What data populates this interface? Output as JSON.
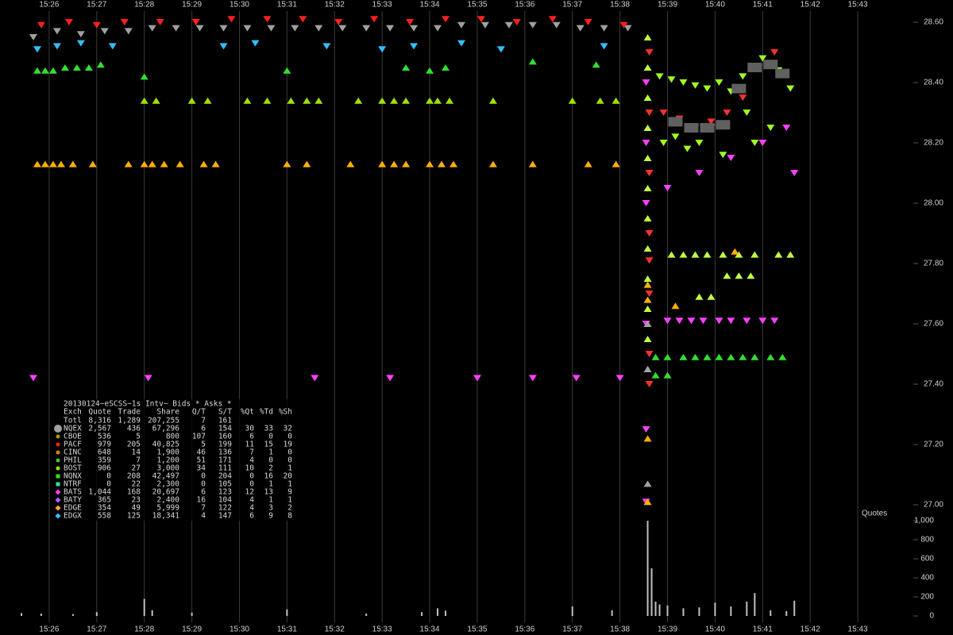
{
  "chart_data": {
    "type": "scatter",
    "xlim": [
      "15:25:20",
      "15:43:40"
    ],
    "xticks": [
      "15:26",
      "15:27",
      "15:28",
      "15:29",
      "15:30",
      "15:31",
      "15:32",
      "15:33",
      "15:34",
      "15:35",
      "15:36",
      "15:37",
      "15:38",
      "15:39",
      "15:40",
      "15:41",
      "15:42",
      "15:43"
    ],
    "ylim": [
      27.0,
      28.6
    ],
    "yticks": [
      {
        "value": 28.6,
        "label": "28.60"
      },
      {
        "value": 28.4,
        "label": "28.40"
      },
      {
        "value": 28.2,
        "label": "28.20"
      },
      {
        "value": 28.0,
        "label": "28.00"
      },
      {
        "value": 27.8,
        "label": "27.80"
      },
      {
        "value": 27.6,
        "label": "27.60"
      },
      {
        "value": 27.4,
        "label": "27.40"
      },
      {
        "value": 27.2,
        "label": "27.20"
      },
      {
        "value": 27.0,
        "label": "27.00"
      }
    ],
    "y2lim": [
      0,
      1000
    ],
    "y2ticks": [
      0,
      200,
      400,
      600,
      800,
      {
        "value": 1000,
        "label": "1,000"
      }
    ],
    "y2_label": "Quotes",
    "grid": true,
    "series": [
      {
        "color": "#ffb000",
        "marker": "triangle-up",
        "x": [
          "15:25:45",
          "15:25:55",
          "15:26:05",
          "15:26:15",
          "15:26:30",
          "15:26:55",
          "15:27:40",
          "15:28:00",
          "15:28:10",
          "15:28:25",
          "15:28:45",
          "15:29:15",
          "15:29:30",
          "15:31:00",
          "15:31:25",
          "15:32:20",
          "15:33:00",
          "15:33:15",
          "15:33:30",
          "15:34:00",
          "15:34:15",
          "15:34:30",
          "15:35:20",
          "15:36:10",
          "15:37:20",
          "15:37:55"
        ],
        "values": [
          28.13,
          28.13,
          28.13,
          28.13,
          28.13,
          28.13,
          28.13,
          28.13,
          28.13,
          28.13,
          28.13,
          28.13,
          28.13,
          28.13,
          28.13,
          28.13,
          28.13,
          28.13,
          28.13,
          28.13,
          28.13,
          28.13,
          28.13,
          28.13,
          28.13,
          28.13
        ]
      },
      {
        "color": "#a0e000",
        "marker": "triangle-up",
        "x": [
          "15:28:00",
          "15:28:15",
          "15:29:00",
          "15:29:20",
          "15:30:10",
          "15:30:35",
          "15:31:05",
          "15:31:25",
          "15:31:40",
          "15:32:30",
          "15:33:00",
          "15:33:15",
          "15:33:30",
          "15:34:00",
          "15:34:10",
          "15:34:25",
          "15:35:20",
          "15:37:00",
          "15:37:35",
          "15:37:55"
        ],
        "values": [
          28.34,
          28.34,
          28.34,
          28.34,
          28.34,
          28.34,
          28.34,
          28.34,
          28.34,
          28.34,
          28.34,
          28.34,
          28.34,
          28.34,
          28.34,
          28.34,
          28.34,
          28.34,
          28.34,
          28.34
        ]
      },
      {
        "color": "#ff40ff",
        "marker": "triangle-down",
        "x": [
          "15:25:40",
          "15:28:05",
          "15:31:35",
          "15:33:10",
          "15:35:00",
          "15:36:10",
          "15:37:05",
          "15:38:00"
        ],
        "values": [
          27.42,
          27.42,
          27.42,
          27.42,
          27.42,
          27.42,
          27.42,
          27.42
        ]
      },
      {
        "color": "#a0a0a0",
        "marker": "triangle-down",
        "x": [
          "15:25:40",
          "15:26:10",
          "15:26:40",
          "15:27:10",
          "15:27:40",
          "15:28:10",
          "15:28:40",
          "15:29:10",
          "15:29:40",
          "15:30:10",
          "15:30:40",
          "15:31:10",
          "15:31:40",
          "15:32:10",
          "15:32:40",
          "15:33:10",
          "15:33:40",
          "15:34:10",
          "15:34:40",
          "15:35:10",
          "15:35:40",
          "15:36:10",
          "15:36:40",
          "15:37:10",
          "15:37:40",
          "15:38:10"
        ],
        "values": [
          28.55,
          28.57,
          28.56,
          28.57,
          28.57,
          28.58,
          28.58,
          28.58,
          28.58,
          28.58,
          28.58,
          28.58,
          28.58,
          28.58,
          28.58,
          28.58,
          28.58,
          28.58,
          28.59,
          28.59,
          28.59,
          28.59,
          28.59,
          28.58,
          28.58,
          28.58
        ]
      },
      {
        "color": "#ff2020",
        "marker": "triangle-down",
        "x": [
          "15:25:50",
          "15:26:25",
          "15:27:00",
          "15:27:35",
          "15:28:20",
          "15:29:05",
          "15:29:50",
          "15:30:35",
          "15:31:20",
          "15:32:05",
          "15:32:50",
          "15:33:35",
          "15:34:20",
          "15:35:05",
          "15:35:50",
          "15:36:35",
          "15:37:20",
          "15:38:05"
        ],
        "values": [
          28.59,
          28.6,
          28.59,
          28.6,
          28.6,
          28.6,
          28.61,
          28.61,
          28.61,
          28.6,
          28.61,
          28.6,
          28.61,
          28.61,
          28.6,
          28.61,
          28.6,
          28.59
        ]
      },
      {
        "color": "#30e030",
        "marker": "triangle-up",
        "x": [
          "15:25:45",
          "15:25:55",
          "15:26:05",
          "15:26:20",
          "15:26:35",
          "15:26:50",
          "15:27:05",
          "15:28:00",
          "15:31:00",
          "15:33:30",
          "15:34:00",
          "15:34:20",
          "15:36:10",
          "15:37:30"
        ],
        "values": [
          28.44,
          28.44,
          28.44,
          28.45,
          28.45,
          28.45,
          28.46,
          28.42,
          28.44,
          28.45,
          28.44,
          28.45,
          28.47,
          28.46
        ]
      },
      {
        "color": "#30c0ff",
        "marker": "triangle-down",
        "x": [
          "15:25:45",
          "15:26:10",
          "15:26:40",
          "15:27:20",
          "15:29:40",
          "15:30:20",
          "15:31:50",
          "15:33:00",
          "15:33:40",
          "15:34:40",
          "15:35:30",
          "15:37:40"
        ],
        "values": [
          28.51,
          28.52,
          28.53,
          28.52,
          28.52,
          28.53,
          28.52,
          28.51,
          28.52,
          28.53,
          28.51,
          28.52
        ]
      },
      {
        "color": "#c0ff40",
        "marker": "triangle-up",
        "x": [
          "15:38:35",
          "15:38:35",
          "15:38:35",
          "15:38:35",
          "15:38:35",
          "15:38:35",
          "15:38:35",
          "15:38:35",
          "15:38:35",
          "15:38:35",
          "15:38:35",
          "15:38:35"
        ],
        "values": [
          28.55,
          28.45,
          28.35,
          28.25,
          28.15,
          28.05,
          27.95,
          27.85,
          27.75,
          27.65,
          27.55,
          27.45
        ]
      },
      {
        "color": "#ff3030",
        "marker": "triangle-down",
        "x": [
          "15:38:37",
          "15:38:37",
          "15:38:37",
          "15:38:37",
          "15:38:37",
          "15:38:37",
          "15:38:37",
          "15:38:37"
        ],
        "values": [
          28.5,
          28.3,
          28.1,
          27.9,
          27.81,
          27.7,
          27.5,
          27.4
        ]
      },
      {
        "color": "#ff40ff",
        "marker": "triangle-down",
        "x": [
          "15:38:33",
          "15:38:33",
          "15:38:33",
          "15:38:33",
          "15:38:33",
          "15:38:33"
        ],
        "values": [
          28.4,
          28.2,
          28.0,
          27.6,
          27.25,
          27.01
        ]
      },
      {
        "color": "#a0a0a0",
        "marker": "triangle-up",
        "x": [
          "15:38:35",
          "15:38:35",
          "15:38:35"
        ],
        "values": [
          27.6,
          27.45,
          27.07
        ]
      },
      {
        "color": "#ffb000",
        "marker": "triangle-up",
        "x": [
          "15:38:35",
          "15:38:35",
          "15:38:35",
          "15:38:35"
        ],
        "values": [
          27.73,
          27.68,
          27.22,
          27.01
        ]
      },
      {
        "color": "#30e030",
        "marker": "triangle-up",
        "x": [
          "15:38:45",
          "15:39:00",
          "15:39:20",
          "15:39:35",
          "15:39:50",
          "15:40:05",
          "15:40:20",
          "15:40:35",
          "15:40:50",
          "15:41:10",
          "15:41:25",
          "15:38:45",
          "15:39:00"
        ],
        "values": [
          27.49,
          27.49,
          27.49,
          27.49,
          27.49,
          27.49,
          27.49,
          27.49,
          27.49,
          27.49,
          27.49,
          27.43,
          27.43
        ]
      },
      {
        "color": "#ff40ff",
        "marker": "triangle-down",
        "x": [
          "15:39:00",
          "15:39:15",
          "15:39:30",
          "15:39:45",
          "15:40:05",
          "15:40:20",
          "15:40:40",
          "15:41:00",
          "15:41:15"
        ],
        "values": [
          27.61,
          27.61,
          27.61,
          27.61,
          27.61,
          27.61,
          27.61,
          27.61,
          27.61
        ]
      },
      {
        "color": "#c0ff40",
        "marker": "triangle-up",
        "x": [
          "15:39:05",
          "15:39:20",
          "15:39:35",
          "15:39:50",
          "15:40:10",
          "15:40:30",
          "15:40:50",
          "15:41:20",
          "15:41:35",
          "15:40:15",
          "15:40:30",
          "15:40:45",
          "15:39:40",
          "15:39:55"
        ],
        "values": [
          27.83,
          27.83,
          27.83,
          27.83,
          27.83,
          27.83,
          27.83,
          27.83,
          27.83,
          27.76,
          27.76,
          27.76,
          27.69,
          27.69
        ]
      },
      {
        "color": "#ffb000",
        "marker": "triangle-up",
        "x": [
          "15:39:10",
          "15:40:25"
        ],
        "values": [
          27.66,
          27.84
        ]
      },
      {
        "color": "#a0ff20",
        "marker": "triangle-down",
        "x": [
          "15:38:50",
          "15:39:05",
          "15:39:20",
          "15:39:35",
          "15:39:50",
          "15:40:05",
          "15:40:20",
          "15:40:35",
          "15:38:55",
          "15:39:10",
          "15:39:25",
          "15:39:40",
          "15:39:55",
          "15:40:10",
          "15:40:40",
          "15:41:00",
          "15:41:20",
          "15:41:35",
          "15:40:50",
          "15:41:10"
        ],
        "values": [
          28.42,
          28.41,
          28.4,
          28.39,
          28.38,
          28.4,
          28.37,
          28.42,
          28.2,
          28.22,
          28.18,
          28.2,
          28.25,
          28.16,
          28.3,
          28.48,
          28.44,
          28.38,
          28.2,
          28.25
        ]
      },
      {
        "color": "#ff3030",
        "marker": "triangle-down",
        "x": [
          "15:38:55",
          "15:39:15",
          "15:39:35",
          "15:39:55",
          "15:40:15",
          "15:40:35",
          "15:40:55",
          "15:41:15"
        ],
        "values": [
          28.3,
          28.28,
          28.25,
          28.27,
          28.3,
          28.35,
          28.45,
          28.5
        ]
      },
      {
        "color": "#606060",
        "marker": "square",
        "x": [
          "15:39:10",
          "15:39:30",
          "15:39:50",
          "15:40:10",
          "15:40:30",
          "15:40:50",
          "15:41:10",
          "15:41:25"
        ],
        "values": [
          28.27,
          28.25,
          28.25,
          28.26,
          28.38,
          28.45,
          28.46,
          28.43
        ]
      },
      {
        "color": "#ff40ff",
        "marker": "triangle-down",
        "x": [
          "15:39:00",
          "15:39:40",
          "15:40:20",
          "15:41:00",
          "15:41:30",
          "15:41:40"
        ],
        "values": [
          28.05,
          28.1,
          28.15,
          28.2,
          28.25,
          28.1
        ]
      },
      {
        "color": "#c0c0c0",
        "marker": "bar",
        "axis": "y2",
        "x": [
          "15:25:25",
          "15:25:50",
          "15:26:30",
          "15:27:00",
          "15:28:00",
          "15:28:10",
          "15:29:00",
          "15:31:00",
          "15:32:40",
          "15:33:50",
          "15:34:10",
          "15:34:20",
          "15:37:00",
          "15:37:50",
          "15:38:35",
          "15:38:40",
          "15:38:45",
          "15:38:50",
          "15:39:00",
          "15:39:20",
          "15:39:40",
          "15:40:00",
          "15:40:20",
          "15:40:40",
          "15:40:50",
          "15:41:10",
          "15:41:30",
          "15:41:40"
        ],
        "values": [
          30,
          25,
          20,
          40,
          180,
          60,
          35,
          70,
          25,
          40,
          80,
          55,
          100,
          60,
          1000,
          500,
          150,
          120,
          110,
          80,
          90,
          140,
          100,
          150,
          240,
          60,
          50,
          160
        ]
      }
    ],
    "stats_table": {
      "title": "20130124~eSCSS~1s Intv~ Bids * Asks *",
      "header": [
        "Exch",
        "Quote",
        "Trade",
        "Share",
        "Q/T",
        "S/T",
        "%Qt",
        "%Td",
        "%Sh"
      ],
      "rows": [
        {
          "cells": [
            "Totl",
            "8,316",
            "1,289",
            "207,255",
            "7",
            "161"
          ]
        },
        {
          "color": "#a0a0a0",
          "marker": "big-circle",
          "cells": [
            "NQEX",
            "2,567",
            "436",
            "67,296",
            "6",
            "154",
            "30",
            "33",
            "32"
          ]
        },
        {
          "color": "#a0a000",
          "marker": "circle",
          "cells": [
            "CBOE",
            "536",
            "5",
            "800",
            "107",
            "160",
            "6",
            "0",
            "0"
          ]
        },
        {
          "color": "#ff2020",
          "marker": "circle",
          "cells": [
            "PACF",
            "979",
            "205",
            "40,825",
            "5",
            "199",
            "11",
            "15",
            "19"
          ]
        },
        {
          "color": "#e08000",
          "marker": "circle",
          "cells": [
            "CINC",
            "648",
            "14",
            "1,900",
            "46",
            "136",
            "7",
            "1",
            "0"
          ]
        },
        {
          "color": "#40c040",
          "marker": "circle",
          "cells": [
            "PHIL",
            "359",
            "7",
            "1,200",
            "51",
            "171",
            "4",
            "0",
            "0"
          ]
        },
        {
          "color": "#a0e000",
          "marker": "circle",
          "cells": [
            "BOST",
            "906",
            "27",
            "3,000",
            "34",
            "111",
            "10",
            "2",
            "1"
          ]
        },
        {
          "color": "#30e030",
          "marker": "square",
          "cells": [
            "NQNX",
            "0",
            "208",
            "42,497",
            "0",
            "204",
            "0",
            "16",
            "20"
          ]
        },
        {
          "color": "#30e0a0",
          "marker": "square",
          "cells": [
            "NTRF",
            "0",
            "22",
            "2,300",
            "0",
            "105",
            "0",
            "1",
            "1"
          ]
        },
        {
          "color": "#ff40ff",
          "marker": "diamond",
          "cells": [
            "BATS",
            "1,044",
            "168",
            "20,697",
            "6",
            "123",
            "12",
            "13",
            "9"
          ]
        },
        {
          "color": "#b060ff",
          "marker": "diamond",
          "cells": [
            "BATY",
            "365",
            "23",
            "2,400",
            "16",
            "104",
            "4",
            "1",
            "1"
          ]
        },
        {
          "color": "#ffa040",
          "marker": "diamond",
          "cells": [
            "EDGE",
            "354",
            "49",
            "5,999",
            "7",
            "122",
            "4",
            "3",
            "2"
          ]
        },
        {
          "color": "#30c0ff",
          "marker": "diamond",
          "cells": [
            "EDGX",
            "558",
            "125",
            "18,341",
            "4",
            "147",
            "6",
            "9",
            "8"
          ]
        }
      ]
    }
  }
}
